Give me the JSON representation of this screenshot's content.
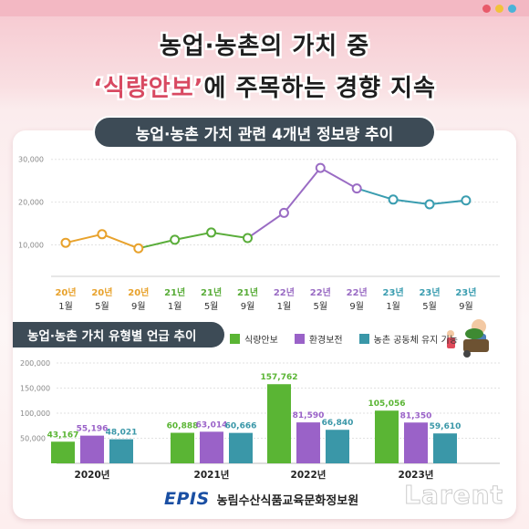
{
  "title": {
    "line1": "농업·농촌의 가치 중",
    "line2_highlight": "‘식량안보’",
    "line2_rest": "에 주목하는 경향 지속"
  },
  "colors": {
    "accent": "#d84a62",
    "dark_banner": "#3d4b56",
    "line_2020": "#e8a22c",
    "line_2021": "#5aad3a",
    "line_2022": "#9a6cc4",
    "line_2023": "#3a9db0",
    "bar_food_security": "#5ab534",
    "bar_environment": "#9a62c8",
    "bar_community": "#3a97a8"
  },
  "window_dots": [
    "#e85a6a",
    "#f2c23a",
    "#4ab3d8"
  ],
  "footer": {
    "logo": "EPIS",
    "org": "농림수산식품교육문화정보원"
  },
  "watermark": "Larent",
  "chart_data": [
    {
      "type": "line",
      "title": "농업·농촌 가치 관련 4개년 정보량 추이",
      "x_year_labels": [
        "20년",
        "20년",
        "20년",
        "21년",
        "21년",
        "21년",
        "22년",
        "22년",
        "22년",
        "23년",
        "23년",
        "23년"
      ],
      "x_month_labels": [
        "1월",
        "5월",
        "9월",
        "1월",
        "5월",
        "9월",
        "1월",
        "5월",
        "9월",
        "1월",
        "5월",
        "9월"
      ],
      "values": [
        10500,
        12500,
        9200,
        11200,
        12900,
        11600,
        17500,
        28000,
        23200,
        20600,
        19500,
        20400
      ],
      "ylim": [
        5000,
        31000
      ],
      "y_ticks": [
        "10,000",
        "20,000",
        "30,000"
      ],
      "y_tick_values": [
        10000,
        20000,
        30000
      ],
      "grid": true
    },
    {
      "type": "bar",
      "title": "농업·농촌 가치 유형별 언급 추이",
      "categories": [
        "2020년",
        "2021년",
        "2022년",
        "2023년"
      ],
      "series": [
        {
          "name": "식량안보",
          "values": [
            43167,
            60888,
            157762,
            105056
          ],
          "labels": [
            "43,167",
            "60,888",
            "157,762",
            "105,056"
          ]
        },
        {
          "name": "환경보전",
          "values": [
            55196,
            63014,
            81590,
            81350
          ],
          "labels": [
            "55,196",
            "63,014",
            "81,590",
            "81,350"
          ]
        },
        {
          "name": "농촌 공동체 유지 기능",
          "values": [
            48021,
            60666,
            66840,
            59610
          ],
          "labels": [
            "48,021",
            "60,666",
            "66,840",
            "59,610"
          ]
        }
      ],
      "ylim": [
        0,
        200000
      ],
      "y_ticks": [
        "50,000",
        "100,000",
        "150,000",
        "200,000"
      ],
      "y_tick_values": [
        50000,
        100000,
        150000,
        200000
      ],
      "legend_position": "top-right",
      "grid": true
    }
  ]
}
